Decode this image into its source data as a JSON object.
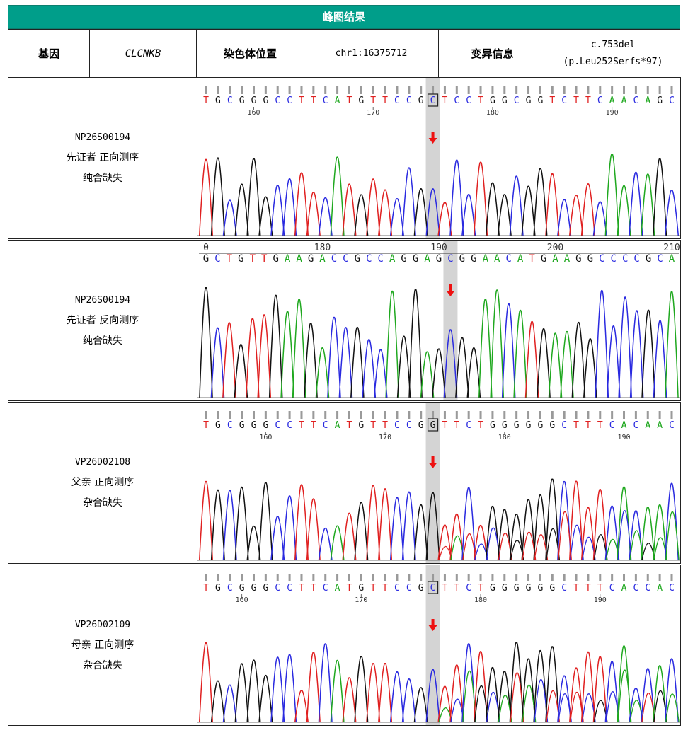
{
  "title": "峰图结果",
  "info": {
    "gene_label": "基因",
    "gene_value": "CLCNKB",
    "position_label": "染色体位置",
    "position_value": "chr1:16375712",
    "variant_label": "变异信息",
    "variant_line1": "c.753del",
    "variant_line2": "(p.Leu252Serfs*97)"
  },
  "rows": [
    {
      "sample_id": "NP26S00194",
      "desc": "先证者 正向测序",
      "result": "纯合缺失",
      "direction": "forward",
      "bases": "TGCGGGCCTTCATGTTCCGCTCCTGGCGGTCTTCAACAGC",
      "highlight_index": 19,
      "ticks": [
        {
          "label": "160",
          "index": 4
        },
        {
          "label": "170",
          "index": 14
        },
        {
          "label": "180",
          "index": 24
        },
        {
          "label": "190",
          "index": 34
        }
      ]
    },
    {
      "sample_id": "NP26S00194",
      "desc": "先证者 反向测序",
      "result": "纯合缺失",
      "direction": "reverse",
      "bases": "GCTGTTGAAGACCGCCAGGAGCGGAACATGAAGGCCCCGCA",
      "highlight_index": 21,
      "ticks": [
        {
          "label": "0",
          "index": 0
        },
        {
          "label": "180",
          "index": 10
        },
        {
          "label": "190",
          "index": 20
        },
        {
          "label": "200",
          "index": 30
        },
        {
          "label": "210",
          "index": 40
        }
      ]
    },
    {
      "sample_id": "VP26D02108",
      "desc": "父亲 正向测序",
      "result": "杂合缺失",
      "direction": "forward",
      "bases": "TGCGGGCCTTCATGTTCCGGTTCTGGGGGGCTTTCACAAC",
      "highlight_index": 19,
      "ticks": [
        {
          "label": "160",
          "index": 5
        },
        {
          "label": "170",
          "index": 15
        },
        {
          "label": "180",
          "index": 25
        },
        {
          "label": "190",
          "index": 35
        }
      ]
    },
    {
      "sample_id": "VP26D02109",
      "desc": "母亲 正向测序",
      "result": "杂合缺失",
      "direction": "forward",
      "bases": "TGCGGGCCTTCATGTTCCGCTTCTGGGGGGCTTTCACCAC",
      "highlight_index": 19,
      "ticks": [
        {
          "label": "160",
          "index": 3
        },
        {
          "label": "170",
          "index": 13
        },
        {
          "label": "180",
          "index": 23
        },
        {
          "label": "190",
          "index": 33
        }
      ]
    }
  ],
  "colors": {
    "A": "#1fa81f",
    "C": "#2a2ae0",
    "G": "#111111",
    "T": "#e02020",
    "header_bg": "#009e8a",
    "arrow": "#ee1111",
    "highlight": "#d4d4d4"
  }
}
